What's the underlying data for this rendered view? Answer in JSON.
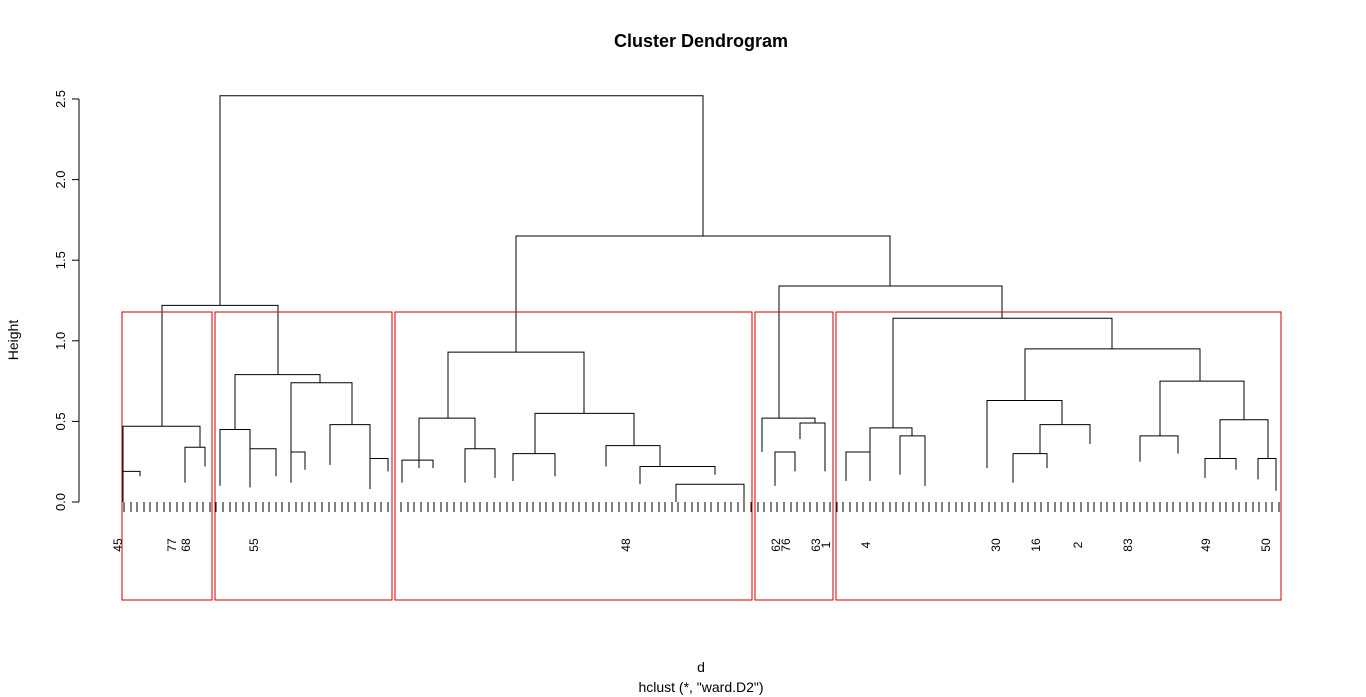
{
  "chart_data": {
    "type": "dendrogram",
    "title": "Cluster Dendrogram",
    "xlabel": "d",
    "sublabel": "hclust (*, \"ward.D2\")",
    "ylabel": "Height",
    "ylim": [
      0,
      2.5
    ],
    "yticks": [
      0.0,
      0.5,
      1.0,
      1.5,
      2.0,
      2.5
    ],
    "ytick_labels": [
      "0.0",
      "0.5",
      "1.0",
      "1.5",
      "2.0",
      "2.5"
    ],
    "grid": false,
    "merges": [
      {
        "height": 2.52,
        "left_x": 220,
        "right_x": 703,
        "left_h": 1.22,
        "right_h": 1.65
      },
      {
        "height": 1.22,
        "left_x": 162,
        "right_x": 278,
        "left_h": 0.47,
        "right_h": 0.79
      },
      {
        "height": 1.65,
        "left_x": 516,
        "right_x": 890,
        "left_h": 0.93,
        "right_h": 1.34
      },
      {
        "height": 0.93,
        "left_x": 448,
        "right_x": 584,
        "left_h": 0.52,
        "right_h": 0.55
      },
      {
        "height": 1.34,
        "left_x": 779,
        "right_x": 1002,
        "left_h": 0.52,
        "right_h": 1.14
      },
      {
        "height": 1.14,
        "left_x": 893,
        "right_x": 1112,
        "left_h": 0.46,
        "right_h": 0.95
      },
      {
        "height": 0.95,
        "left_x": 1025,
        "right_x": 1200,
        "left_h": 0.63,
        "right_h": 0.75
      },
      {
        "height": 0.79,
        "left_x": 235,
        "right_x": 320,
        "left_h": 0.45,
        "right_h": 0.74
      },
      {
        "height": 0.74,
        "left_x": 291,
        "right_x": 352,
        "left_h": 0.31,
        "right_h": 0.48
      }
    ],
    "highlight_clusters": 5,
    "highlight_color": "#cc0000",
    "leaf_labels_visible": [
      "45",
      "77",
      "68",
      "63",
      "83",
      "55",
      "2",
      "50",
      "62",
      "76",
      "48",
      "30",
      "16",
      "49",
      "4",
      "1"
    ]
  }
}
